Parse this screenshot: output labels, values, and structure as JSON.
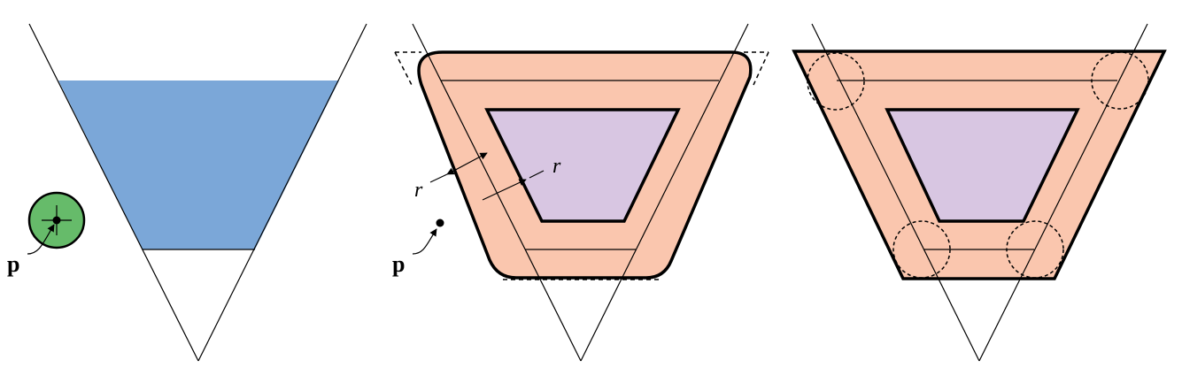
{
  "labels": {
    "point": "p",
    "radius_left": "r",
    "radius_right": "r"
  },
  "colors": {
    "trapezoid_fill": "#7ba7d8",
    "disc_fill": "#66bb6a",
    "offset_fill": "#fac6ae",
    "inner_fill": "#d8c6e2",
    "stroke": "#000000"
  }
}
